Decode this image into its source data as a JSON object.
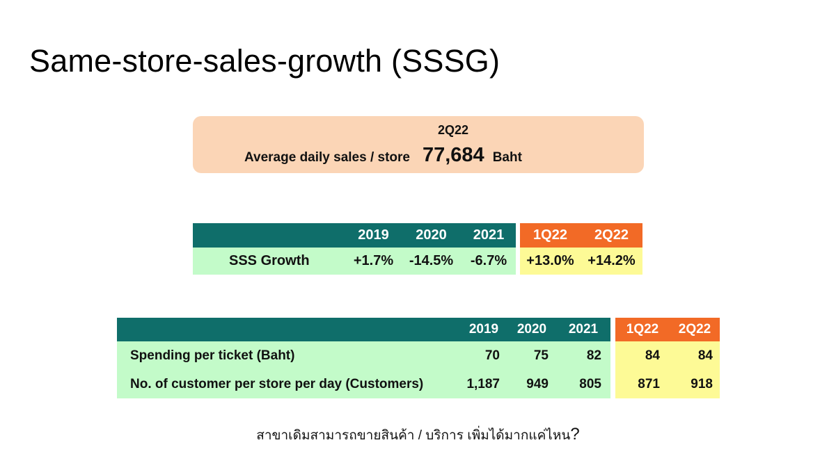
{
  "title": "Same-store-sales-growth (SSSG)",
  "kpi": {
    "period": "2Q22",
    "label": "Average daily sales / store",
    "value": "77,684",
    "unit": "Baht"
  },
  "sssg_table": {
    "headers": [
      "2019",
      "2020",
      "2021",
      "1Q22",
      "2Q22"
    ],
    "row_label": "SSS Growth",
    "values": [
      "+1.7%",
      "-14.5%",
      "-6.7%",
      "+13.0%",
      "+14.2%"
    ]
  },
  "detail_table": {
    "headers": [
      "2019",
      "2020",
      "2021",
      "1Q22",
      "2Q22"
    ],
    "rows": [
      {
        "label": "Spending per ticket (Baht)",
        "values": [
          "70",
          "75",
          "82",
          "84",
          "84"
        ]
      },
      {
        "label": "No. of customer per store per day (Customers)",
        "values": [
          "1,187",
          "949",
          "805",
          "871",
          "918"
        ]
      }
    ]
  },
  "subtitle": {
    "text": "สาขาเดิมสามารถขายสินค้า / บริการ เพิ่มได้มากแค่ไหน",
    "mark": "?"
  },
  "colors": {
    "header_green": "#0f6e6a",
    "header_orange": "#f26a26",
    "body_green": "#c3fbc9",
    "body_yellow": "#fdfa96",
    "kpi_box": "#fbd5b6"
  }
}
